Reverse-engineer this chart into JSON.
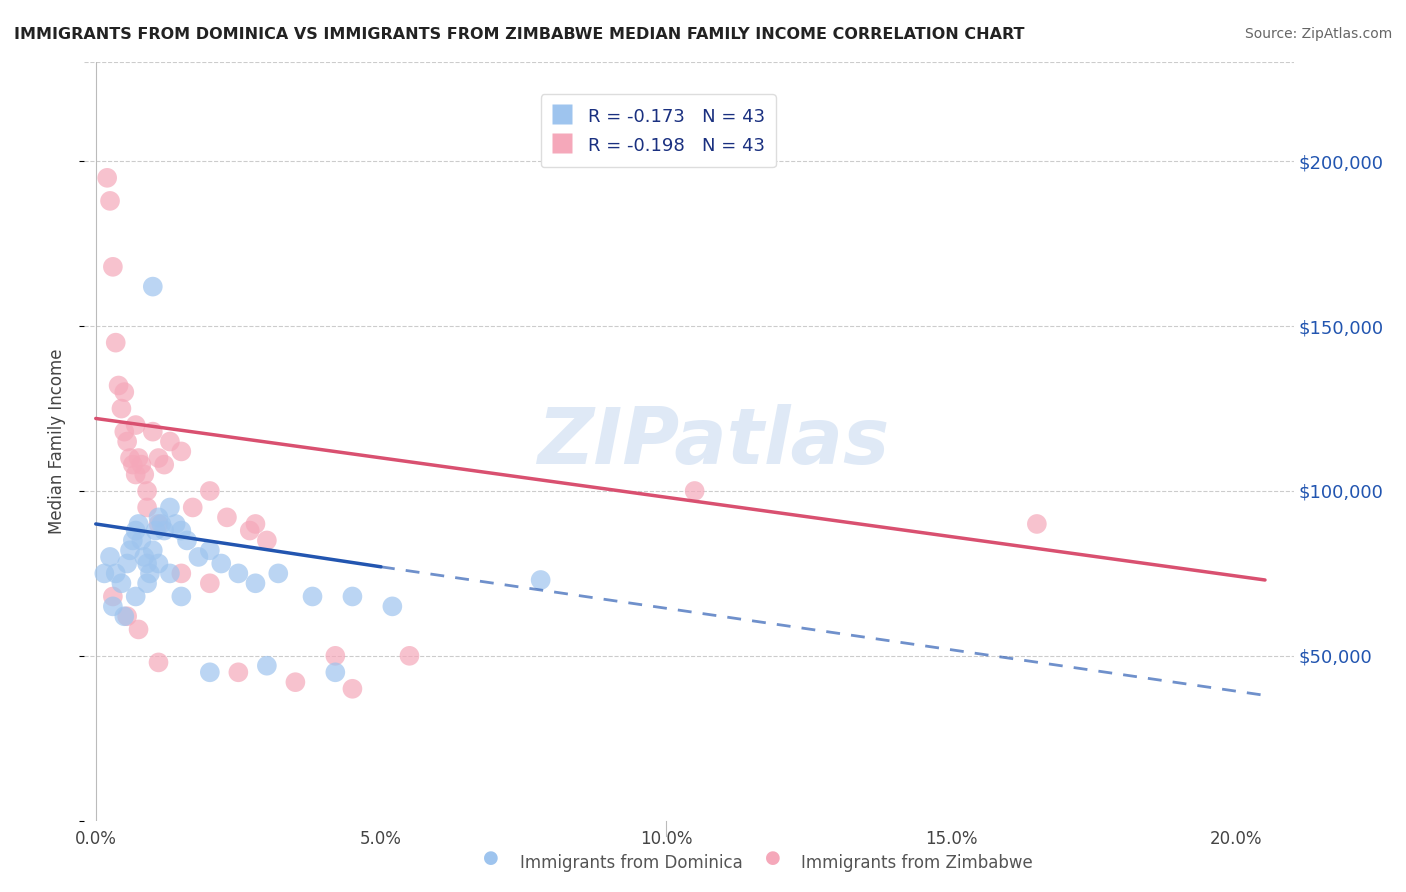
{
  "title": "IMMIGRANTS FROM DOMINICA VS IMMIGRANTS FROM ZIMBABWE MEDIAN FAMILY INCOME CORRELATION CHART",
  "source": "Source: ZipAtlas.com",
  "xlabel_ticks": [
    "0.0%",
    "5.0%",
    "10.0%",
    "15.0%",
    "20.0%"
  ],
  "xlabel_vals": [
    0.0,
    5.0,
    10.0,
    15.0,
    20.0
  ],
  "ylabel": "Median Family Income",
  "ylim": [
    0,
    230000
  ],
  "xlim": [
    -0.2,
    21.0
  ],
  "yticks": [
    50000,
    100000,
    150000,
    200000
  ],
  "ytick_labels": [
    "$50,000",
    "$100,000",
    "$150,000",
    "$200,000"
  ],
  "blue_color": "#9ec4ee",
  "pink_color": "#f5a8ba",
  "blue_line_color": "#2255b0",
  "pink_line_color": "#d95070",
  "R_blue": -0.173,
  "R_pink": -0.198,
  "N_blue": 43,
  "N_pink": 43,
  "blue_x": [
    0.15,
    0.25,
    0.35,
    0.45,
    0.55,
    0.6,
    0.65,
    0.7,
    0.75,
    0.8,
    0.85,
    0.9,
    0.95,
    1.0,
    1.05,
    1.1,
    1.15,
    1.2,
    1.3,
    1.4,
    1.5,
    1.6,
    1.8,
    2.0,
    2.2,
    2.5,
    1.0,
    2.8,
    3.2,
    3.8,
    4.5,
    5.2,
    7.8,
    0.3,
    0.5,
    0.7,
    0.9,
    1.1,
    1.3,
    1.5,
    2.0,
    3.0,
    4.2
  ],
  "blue_y": [
    75000,
    80000,
    75000,
    72000,
    78000,
    82000,
    85000,
    88000,
    90000,
    85000,
    80000,
    78000,
    75000,
    82000,
    88000,
    92000,
    90000,
    88000,
    95000,
    90000,
    88000,
    85000,
    80000,
    82000,
    78000,
    75000,
    162000,
    72000,
    75000,
    68000,
    68000,
    65000,
    73000,
    65000,
    62000,
    68000,
    72000,
    78000,
    75000,
    68000,
    45000,
    47000,
    45000
  ],
  "pink_x": [
    0.2,
    0.25,
    0.3,
    0.35,
    0.4,
    0.45,
    0.5,
    0.55,
    0.6,
    0.65,
    0.7,
    0.75,
    0.8,
    0.85,
    0.9,
    1.0,
    1.1,
    1.2,
    1.3,
    1.5,
    1.7,
    2.0,
    2.3,
    2.7,
    3.0,
    0.5,
    0.7,
    0.9,
    1.1,
    1.5,
    2.0,
    2.8,
    4.2,
    10.5,
    16.5,
    0.3,
    0.55,
    0.75,
    1.1,
    2.5,
    3.5,
    4.5,
    5.5
  ],
  "pink_y": [
    195000,
    188000,
    168000,
    145000,
    132000,
    125000,
    118000,
    115000,
    110000,
    108000,
    120000,
    110000,
    108000,
    105000,
    100000,
    118000,
    110000,
    108000,
    115000,
    112000,
    95000,
    100000,
    92000,
    88000,
    85000,
    130000,
    105000,
    95000,
    90000,
    75000,
    72000,
    90000,
    50000,
    100000,
    90000,
    68000,
    62000,
    58000,
    48000,
    45000,
    42000,
    40000,
    50000
  ],
  "blue_line_x0": 0.0,
  "blue_line_y0": 90000,
  "blue_line_x1": 5.0,
  "blue_line_y1": 77000,
  "blue_dash_x0": 5.0,
  "blue_dash_y0": 77000,
  "blue_dash_x1": 20.5,
  "blue_dash_y1": 38000,
  "pink_line_x0": 0.0,
  "pink_line_y0": 122000,
  "pink_line_x1": 20.5,
  "pink_line_y1": 73000,
  "watermark_text": "ZIPatlas",
  "background_color": "#ffffff",
  "grid_color": "#cccccc",
  "legend_text_color": "#1a3080",
  "title_color": "#222222",
  "source_color": "#666666",
  "bottom_label_color": "#555555",
  "right_tick_color": "#2255b0"
}
